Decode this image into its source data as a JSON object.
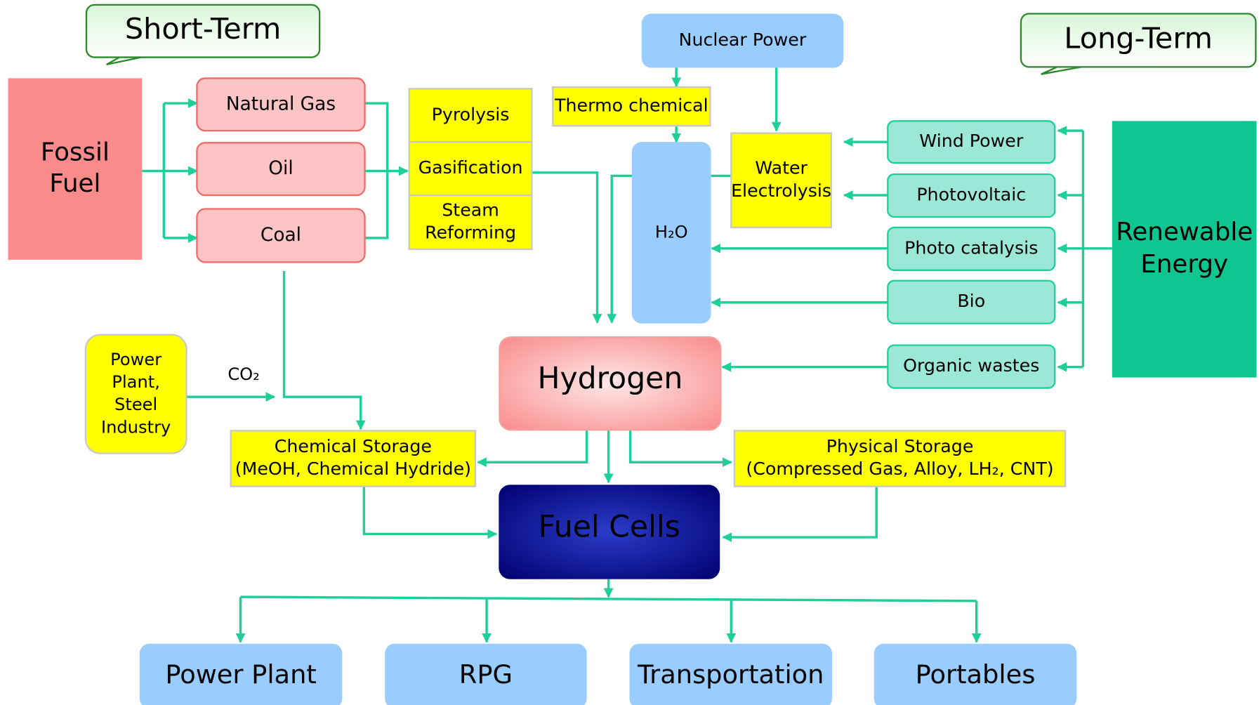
{
  "nodes": {
    "short_term": [
      "Short-Term"
    ],
    "long_term": [
      "Long-Term"
    ],
    "fossil_fuel": [
      "Fossil",
      "Fuel"
    ],
    "natural_gas": [
      "Natural Gas"
    ],
    "oil": [
      "Oil"
    ],
    "coal": [
      "Coal"
    ],
    "pyrolysis": [
      "Pyrolysis"
    ],
    "gasification": [
      "Gasification"
    ],
    "steam_reforming": [
      "Steam",
      "Reforming"
    ],
    "nuclear_power": [
      "Nuclear Power"
    ],
    "thermo_chemical": [
      "Thermo chemical"
    ],
    "h2o": [
      "H₂O"
    ],
    "water_electrolysis": [
      "Water",
      "Electrolysis"
    ],
    "wind_power": [
      "Wind Power"
    ],
    "photovoltaic": [
      "Photovoltaic"
    ],
    "photo_catalysis": [
      "Photo catalysis"
    ],
    "bio": [
      "Bio"
    ],
    "organic_wastes": [
      "Organic wastes"
    ],
    "renewable_energy": [
      "Renewable",
      "Energy"
    ],
    "industry": [
      "Power",
      "Plant,",
      "Steel",
      "Industry"
    ],
    "hydrogen": [
      "Hydrogen"
    ],
    "chemical_storage": [
      "Chemical Storage",
      "(MeOH, Chemical Hydride)"
    ],
    "physical_storage": [
      "Physical Storage",
      "(Compressed Gas, Alloy, LH₂, CNT)"
    ],
    "fuel_cells": [
      "Fuel Cells"
    ],
    "power_plant": [
      "Power Plant"
    ],
    "rpg": [
      "RPG"
    ],
    "transportation": [
      "Transportation"
    ],
    "portables": [
      "Portables"
    ]
  },
  "edge_labels": {
    "co2": "CO₂"
  }
}
